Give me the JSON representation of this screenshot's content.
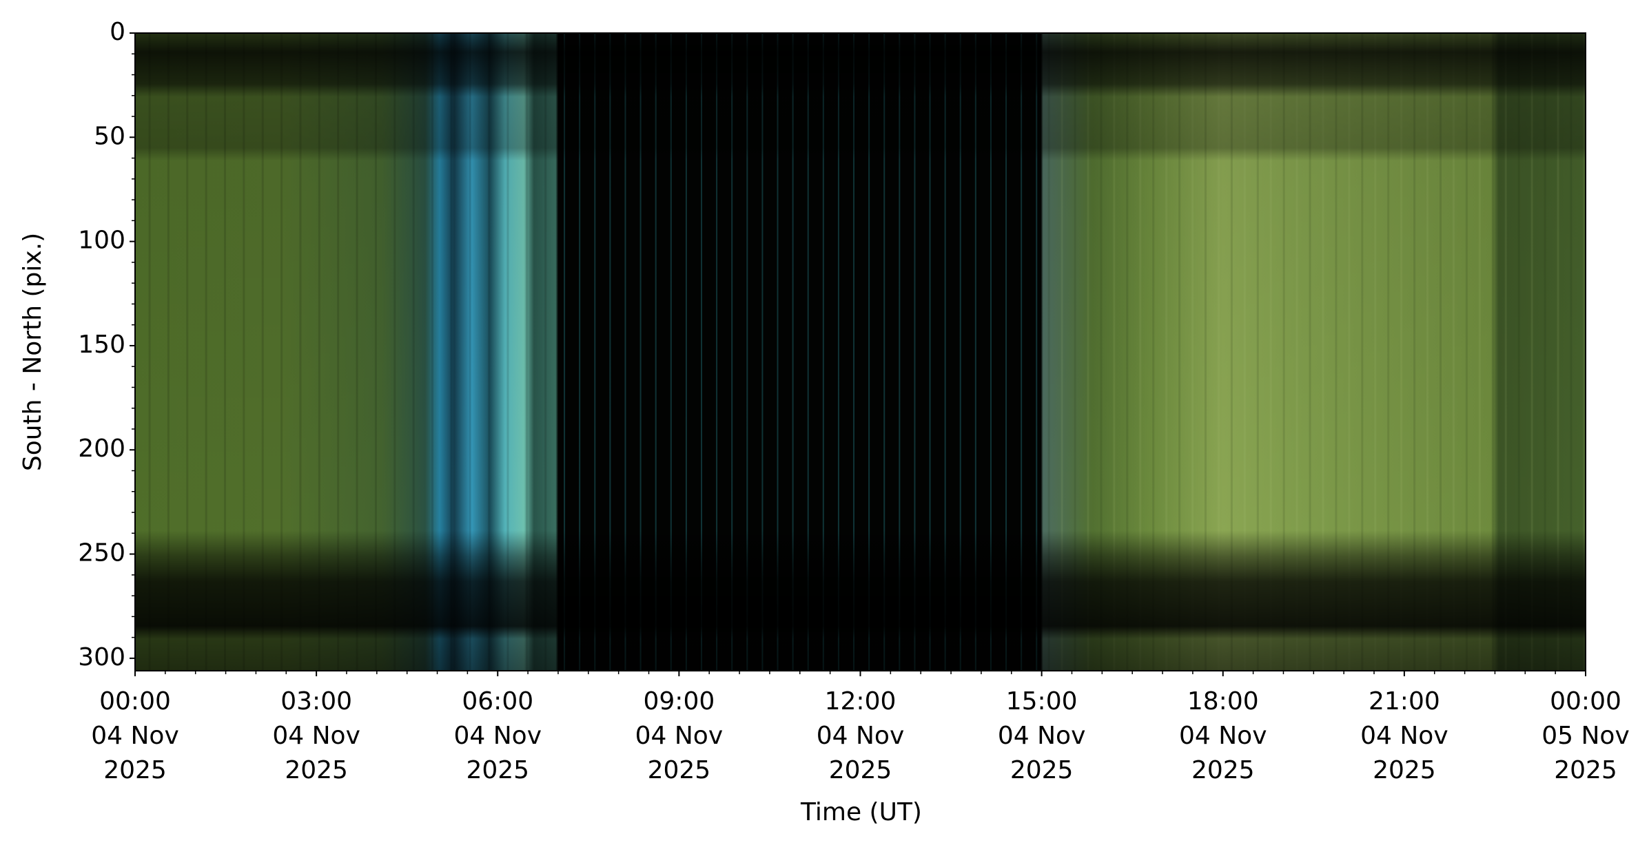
{
  "chart_data": {
    "type": "image",
    "xlabel": "Time (UT)",
    "ylabel": "South - North (pix.)",
    "xlim": [
      "2025-11-04T00:00",
      "2025-11-05T00:00"
    ],
    "xticks": [
      {
        "value": "2025-11-04T00:00",
        "label": [
          "00:00",
          "04 Nov",
          "2025"
        ]
      },
      {
        "value": "2025-11-04T03:00",
        "label": [
          "03:00",
          "04 Nov",
          "2025"
        ]
      },
      {
        "value": "2025-11-04T06:00",
        "label": [
          "06:00",
          "04 Nov",
          "2025"
        ]
      },
      {
        "value": "2025-11-04T09:00",
        "label": [
          "09:00",
          "04 Nov",
          "2025"
        ]
      },
      {
        "value": "2025-11-04T12:00",
        "label": [
          "12:00",
          "04 Nov",
          "2025"
        ]
      },
      {
        "value": "2025-11-04T15:00",
        "label": [
          "15:00",
          "04 Nov",
          "2025"
        ]
      },
      {
        "value": "2025-11-04T18:00",
        "label": [
          "18:00",
          "04 Nov",
          "2025"
        ]
      },
      {
        "value": "2025-11-04T21:00",
        "label": [
          "21:00",
          "04 Nov",
          "2025"
        ]
      },
      {
        "value": "2025-11-05T00:00",
        "label": [
          "00:00",
          "05 Nov",
          "2025"
        ]
      }
    ],
    "xminorticks": [
      "2025-11-04T00:30",
      "2025-11-04T01:00",
      "2025-11-04T01:30",
      "2025-11-04T02:00",
      "2025-11-04T02:30",
      "2025-11-04T03:30",
      "2025-11-04T04:00",
      "2025-11-04T04:30",
      "2025-11-04T05:00",
      "2025-11-04T05:30",
      "2025-11-04T06:30",
      "2025-11-04T07:00",
      "2025-11-04T07:30",
      "2025-11-04T08:00",
      "2025-11-04T08:30",
      "2025-11-04T09:30",
      "2025-11-04T10:00",
      "2025-11-04T10:30",
      "2025-11-04T11:00",
      "2025-11-04T11:30",
      "2025-11-04T12:30",
      "2025-11-04T13:00",
      "2025-11-04T13:30",
      "2025-11-04T14:00",
      "2025-11-04T14:30",
      "2025-11-04T15:30",
      "2025-11-04T16:00",
      "2025-11-04T16:30",
      "2025-11-04T17:00",
      "2025-11-04T17:30",
      "2025-11-04T18:30",
      "2025-11-04T19:00",
      "2025-11-04T19:30",
      "2025-11-04T20:00",
      "2025-11-04T20:30",
      "2025-11-04T21:30",
      "2025-11-04T22:00",
      "2025-11-04T22:30",
      "2025-11-04T23:00",
      "2025-11-04T23:30"
    ],
    "ylim": [
      306,
      0
    ],
    "yticks": [
      0,
      50,
      100,
      150,
      200,
      250,
      300
    ],
    "yminorticks": [
      10,
      20,
      30,
      40,
      60,
      70,
      80,
      90,
      110,
      120,
      130,
      140,
      160,
      170,
      180,
      190,
      210,
      220,
      230,
      240,
      260,
      270,
      280,
      290
    ]
  }
}
